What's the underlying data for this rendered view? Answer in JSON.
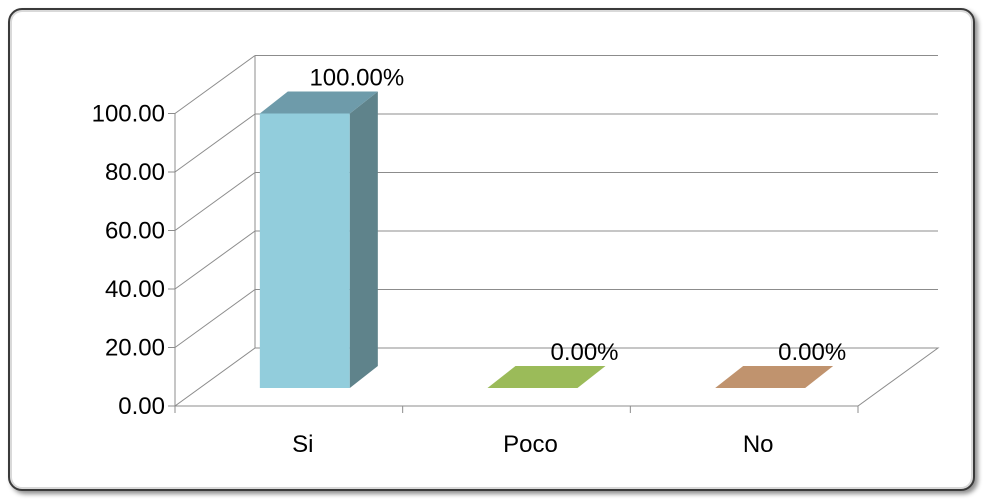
{
  "chart_data": {
    "type": "bar",
    "style": "3d-column",
    "categories": [
      "Si",
      "Poco",
      "No"
    ],
    "values": [
      100.0,
      0.0,
      0.0
    ],
    "data_labels": [
      "100.00%",
      "0.00%",
      "0.00%"
    ],
    "colors": [
      "#92CDDC",
      "#9BBB59",
      "#C0936E"
    ],
    "side_colors": [
      "#5F838B",
      "#6E8A45",
      "#8E6A4E"
    ],
    "top_colors": [
      "#6E9BAA",
      "#7F9E52",
      "#A67E5E"
    ],
    "y_ticks": [
      "0.00",
      "20.00",
      "40.00",
      "60.00",
      "80.00",
      "100.00"
    ],
    "ylim": [
      0,
      100
    ],
    "grid": true,
    "legend": "none",
    "title": "",
    "xlabel": "",
    "ylabel": ""
  }
}
